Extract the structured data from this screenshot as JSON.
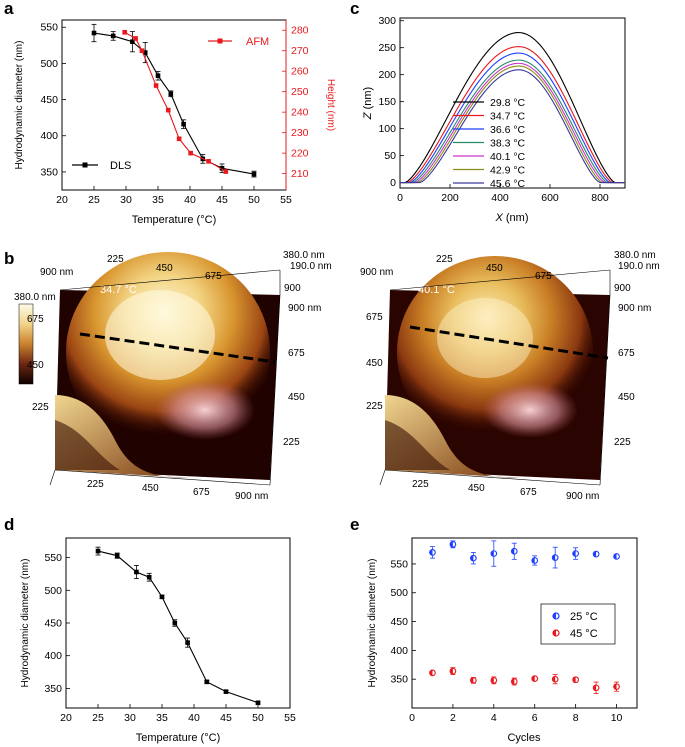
{
  "figure": {
    "panel_labels": [
      "a",
      "b",
      "c",
      "d",
      "e"
    ]
  },
  "chart_data": [
    {
      "id": "a",
      "type": "line",
      "xlabel": "Temperature (°C)",
      "ylabel": "Hydrodynamic diameter (nm)",
      "y2label": "Height (nm)",
      "xlim": [
        20,
        55
      ],
      "ylim": [
        325,
        560
      ],
      "y2lim": [
        202,
        285
      ],
      "xticks": [
        20,
        25,
        30,
        35,
        40,
        45,
        50,
        55
      ],
      "yticks": [
        350,
        400,
        450,
        500,
        550
      ],
      "y2ticks": [
        210,
        220,
        230,
        240,
        250,
        260,
        270,
        280
      ],
      "series": [
        {
          "name": "DLS",
          "axis": "left",
          "color": "#000000",
          "x": [
            25,
            28,
            31,
            33,
            35,
            37,
            39,
            42,
            45,
            50
          ],
          "y": [
            542,
            538,
            530,
            515,
            483,
            458,
            416,
            368,
            355,
            347
          ],
          "err": [
            12,
            6,
            14,
            14,
            6,
            4,
            6,
            6,
            6,
            4
          ]
        },
        {
          "name": "AFM",
          "axis": "right",
          "color": "#e8191c",
          "x": [
            29.8,
            31.5,
            32.5,
            34.7,
            36.6,
            38.3,
            40.1,
            42.9,
            45.6
          ],
          "y": [
            279,
            276,
            270,
            253,
            241,
            227,
            220,
            216,
            211
          ]
        }
      ]
    },
    {
      "id": "b",
      "type": "heatmap",
      "colorbar_label": "380.0 nm",
      "images": [
        {
          "label": "34.7 °C",
          "left_ticks": [
            "900 nm",
            "675",
            "450",
            "225"
          ],
          "top_ticks": [
            "225",
            "450",
            "675"
          ],
          "right_top": [
            "380.0 nm",
            "190.0 nm",
            "900"
          ],
          "right_ticks": [
            "900 nm",
            "675",
            "450",
            "225"
          ],
          "bottom_ticks": [
            "225",
            "450",
            "675",
            "900 nm"
          ]
        },
        {
          "label": "40.1 °C",
          "left_ticks": [
            "900 nm",
            "675",
            "450",
            "225"
          ],
          "top_ticks": [
            "225",
            "450",
            "675"
          ],
          "right_top": [
            "380.0 nm",
            "190.0 nm",
            "900"
          ],
          "right_ticks": [
            "900 nm",
            "675",
            "450",
            "225"
          ],
          "bottom_ticks": [
            "225",
            "450",
            "675",
            "900 nm"
          ]
        }
      ]
    },
    {
      "id": "c",
      "type": "line",
      "xlabel": "X (nm)",
      "ylabel": "Z (nm)",
      "xlim": [
        0,
        900
      ],
      "ylim": [
        -10,
        305
      ],
      "xticks": [
        0,
        200,
        400,
        600,
        800
      ],
      "yticks": [
        0,
        50,
        100,
        150,
        200,
        250,
        300
      ],
      "profile": {
        "x_start": 20,
        "x_end": 860,
        "x_peak": 475,
        "base": 50
      },
      "series": [
        {
          "name": "29.8 °C",
          "color": "#000000",
          "peak": 278
        },
        {
          "name": "34.7 °C",
          "color": "#e8191c",
          "peak": 252
        },
        {
          "name": "36.6 °C",
          "color": "#1f3fff",
          "peak": 240
        },
        {
          "name": "38.3 °C",
          "color": "#2a8a6a",
          "peak": 227
        },
        {
          "name": "40.1 °C",
          "color": "#cc33cc",
          "peak": 221
        },
        {
          "name": "42.9 °C",
          "color": "#8c8c1a",
          "peak": 216
        },
        {
          "name": "45.6 °C",
          "color": "#3a3a9c",
          "peak": 209
        }
      ]
    },
    {
      "id": "d",
      "type": "line",
      "xlabel": "Temperature (°C)",
      "ylabel": "Hydrodynamic diameter (nm)",
      "xlim": [
        20,
        55
      ],
      "ylim": [
        320,
        580
      ],
      "xticks": [
        20,
        25,
        30,
        35,
        40,
        45,
        50,
        55
      ],
      "yticks": [
        350,
        400,
        450,
        500,
        550
      ],
      "series": [
        {
          "name": "diameter",
          "color": "#000000",
          "x": [
            25,
            28,
            31,
            33,
            35,
            37,
            39,
            42,
            45,
            50
          ],
          "y": [
            560,
            553,
            528,
            520,
            490,
            450,
            420,
            360,
            345,
            328
          ],
          "err": [
            6,
            4,
            10,
            6,
            2,
            5,
            7,
            2,
            2,
            2
          ]
        }
      ]
    },
    {
      "id": "e",
      "type": "scatter",
      "xlabel": "Cycles",
      "ylabel": "Hydrodynamic diameter (nm)",
      "xlim": [
        0,
        11
      ],
      "ylim": [
        300,
        595
      ],
      "xticks": [
        0,
        2,
        4,
        6,
        8,
        10
      ],
      "yticks": [
        350,
        400,
        450,
        500,
        550
      ],
      "series": [
        {
          "name": "25 °C",
          "color": "#1f3fff",
          "x": [
            1,
            2,
            3,
            4,
            5,
            6,
            7,
            8,
            9,
            10
          ],
          "y": [
            570,
            584,
            560,
            568,
            572,
            556,
            561,
            568,
            567,
            563
          ],
          "err": [
            10,
            6,
            10,
            22,
            14,
            8,
            18,
            10,
            3,
            3
          ]
        },
        {
          "name": "45 °C",
          "color": "#e8191c",
          "x": [
            1,
            2,
            3,
            4,
            5,
            6,
            7,
            8,
            9,
            10
          ],
          "y": [
            361,
            364,
            348,
            348,
            346,
            351,
            350,
            349,
            335,
            337
          ],
          "err": [
            3,
            6,
            5,
            6,
            6,
            3,
            8,
            4,
            10,
            8
          ]
        }
      ]
    }
  ]
}
